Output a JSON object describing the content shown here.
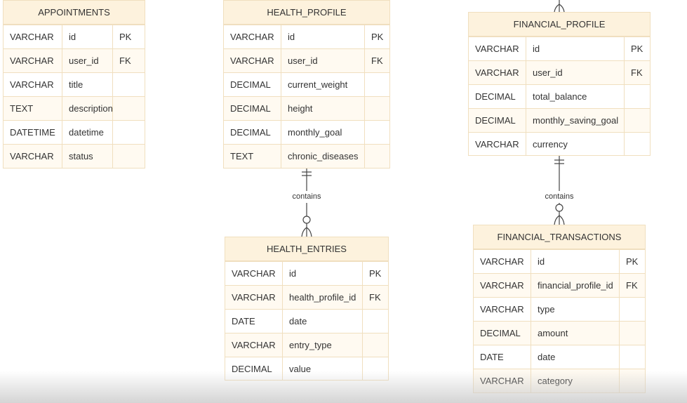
{
  "entities": {
    "appointments": {
      "name": "APPOINTMENTS",
      "rows": [
        {
          "type": "VARCHAR",
          "name": "id",
          "key": "PK"
        },
        {
          "type": "VARCHAR",
          "name": "user_id",
          "key": "FK"
        },
        {
          "type": "VARCHAR",
          "name": "title",
          "key": ""
        },
        {
          "type": "TEXT",
          "name": "description",
          "key": ""
        },
        {
          "type": "DATETIME",
          "name": "datetime",
          "key": ""
        },
        {
          "type": "VARCHAR",
          "name": "status",
          "key": ""
        }
      ]
    },
    "health_profile": {
      "name": "HEALTH_PROFILE",
      "rows": [
        {
          "type": "VARCHAR",
          "name": "id",
          "key": "PK"
        },
        {
          "type": "VARCHAR",
          "name": "user_id",
          "key": "FK"
        },
        {
          "type": "DECIMAL",
          "name": "current_weight",
          "key": ""
        },
        {
          "type": "DECIMAL",
          "name": "height",
          "key": ""
        },
        {
          "type": "DECIMAL",
          "name": "monthly_goal",
          "key": ""
        },
        {
          "type": "TEXT",
          "name": "chronic_diseases",
          "key": ""
        }
      ]
    },
    "financial_profile": {
      "name": "FINANCIAL_PROFILE",
      "rows": [
        {
          "type": "VARCHAR",
          "name": "id",
          "key": "PK"
        },
        {
          "type": "VARCHAR",
          "name": "user_id",
          "key": "FK"
        },
        {
          "type": "DECIMAL",
          "name": "total_balance",
          "key": ""
        },
        {
          "type": "DECIMAL",
          "name": "monthly_saving_goal",
          "key": ""
        },
        {
          "type": "VARCHAR",
          "name": "currency",
          "key": ""
        }
      ]
    },
    "health_entries": {
      "name": "HEALTH_ENTRIES",
      "rows": [
        {
          "type": "VARCHAR",
          "name": "id",
          "key": "PK"
        },
        {
          "type": "VARCHAR",
          "name": "health_profile_id",
          "key": "FK"
        },
        {
          "type": "DATE",
          "name": "date",
          "key": ""
        },
        {
          "type": "VARCHAR",
          "name": "entry_type",
          "key": ""
        },
        {
          "type": "DECIMAL",
          "name": "value",
          "key": ""
        }
      ]
    },
    "financial_transactions": {
      "name": "FINANCIAL_TRANSACTIONS",
      "rows": [
        {
          "type": "VARCHAR",
          "name": "id",
          "key": "PK"
        },
        {
          "type": "VARCHAR",
          "name": "financial_profile_id",
          "key": "FK"
        },
        {
          "type": "VARCHAR",
          "name": "type",
          "key": ""
        },
        {
          "type": "DECIMAL",
          "name": "amount",
          "key": ""
        },
        {
          "type": "DATE",
          "name": "date",
          "key": ""
        },
        {
          "type": "VARCHAR",
          "name": "category",
          "key": ""
        }
      ]
    }
  },
  "relationships": [
    {
      "label": "contains"
    },
    {
      "label": "contains"
    }
  ],
  "colors": {
    "header_bg": "#fdf2dd",
    "border": "#f0dfbf",
    "line": "#444444"
  }
}
